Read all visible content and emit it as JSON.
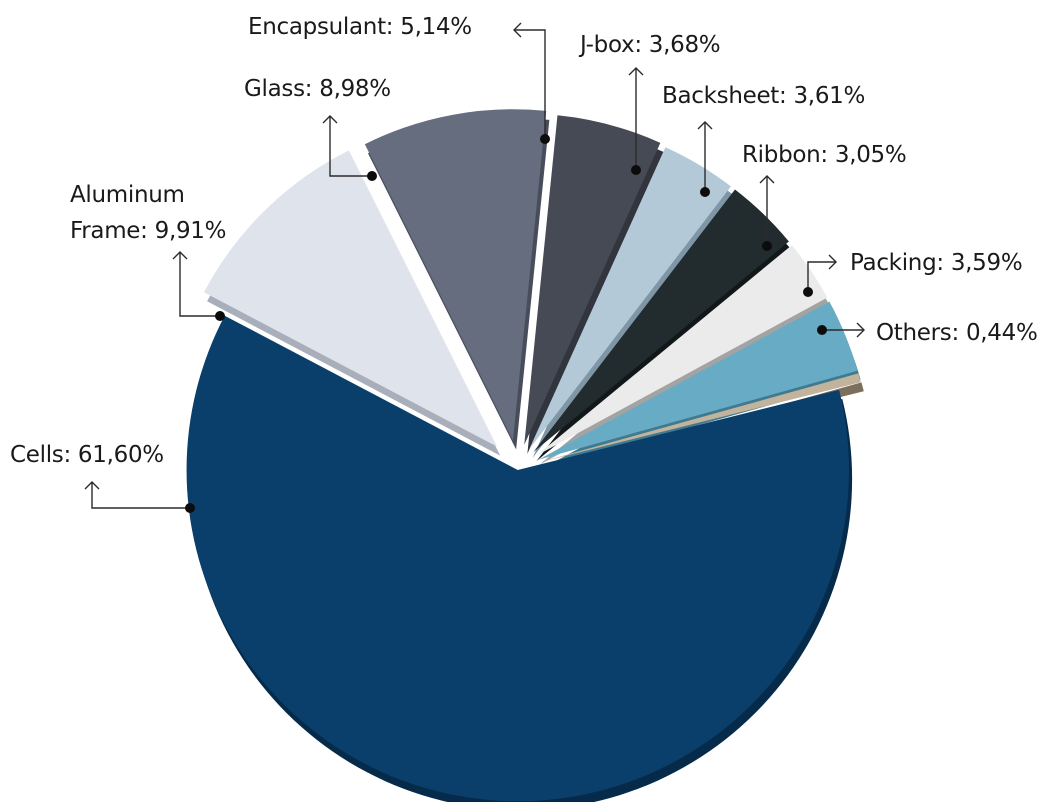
{
  "chart_data": {
    "type": "pie",
    "style": "exploded-3d",
    "slices": [
      {
        "label": "Cells",
        "value": 61.6,
        "display": "Cells: 61,60%",
        "color": "#0a3f6b",
        "side": "#062b4a"
      },
      {
        "label": "Aluminum Frame",
        "value": 9.91,
        "display": [
          "Aluminum",
          "Frame: 9,91%"
        ],
        "color": "#dfe3ec",
        "side": "#a9aebb"
      },
      {
        "label": "Glass",
        "value": 8.98,
        "display": "Glass: 8,98%",
        "color": "#666d7e",
        "side": "#474d5b"
      },
      {
        "label": "Encapsulant",
        "value": 5.14,
        "display": "Encapsulant: 5,14%",
        "color": "#464a55",
        "side": "#32353d"
      },
      {
        "label": "J-box",
        "value": 3.68,
        "display": "J-box: 3,68%",
        "color": "#b4c9d8",
        "side": "#7f96a6"
      },
      {
        "label": "Backsheet",
        "value": 3.61,
        "display": "Backsheet: 3,61%",
        "color": "#222c2f",
        "side": "#121819"
      },
      {
        "label": "Ribbon",
        "value": 3.05,
        "display": "Ribbon: 3,05%",
        "color": "#ebebeb",
        "side": "#a3a3a3"
      },
      {
        "label": "Packing",
        "value": 3.59,
        "display": "Packing: 3,59%",
        "color": "#68abc4",
        "side": "#3f7a90"
      },
      {
        "label": "Others",
        "value": 0.44,
        "display": "Others: 0,44%",
        "color": "#c2b39c",
        "side": "#7c6f5c"
      }
    ]
  }
}
